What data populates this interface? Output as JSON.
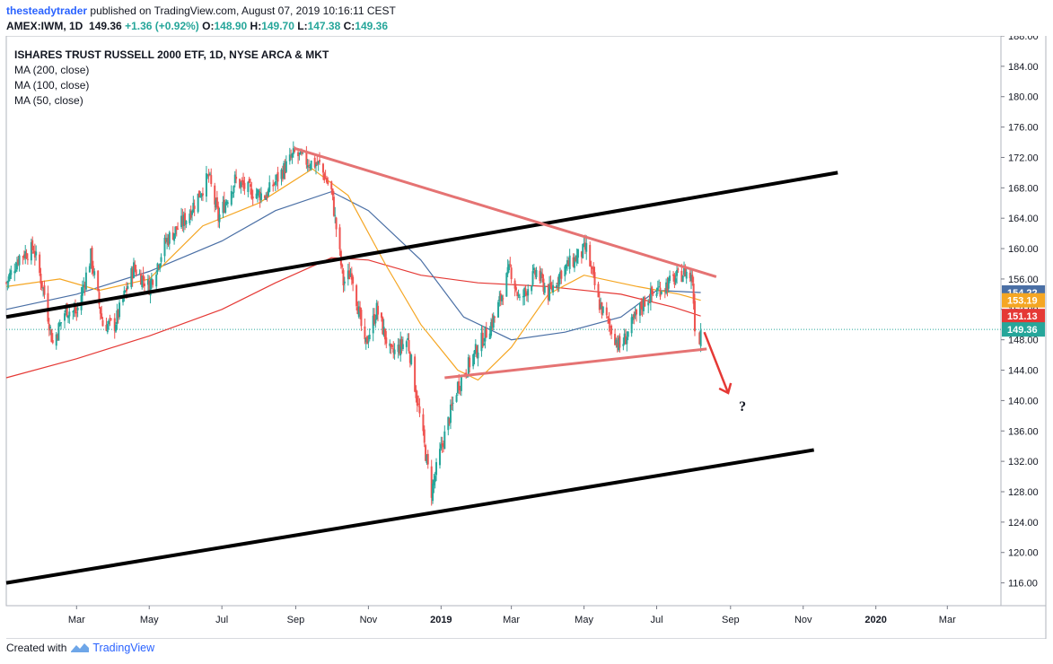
{
  "header": {
    "author": "thesteadytrader",
    "published_text": "published on TradingView.com, August 07, 2019 10:16:11 CEST",
    "symbol": "AMEX:IWM, 1D",
    "last": "149.36",
    "change": "+1.36 (+0.92%)",
    "o_label": "O:",
    "o": "148.90",
    "h_label": "H:",
    "h": "149.70",
    "l_label": "L:",
    "l": "147.38",
    "c_label": "C:",
    "c": "149.36"
  },
  "legend": {
    "title": "ISHARES TRUST RUSSELL 2000 ETF, 1D, NYSE ARCA & MKT",
    "ma1": "MA (200, close)",
    "ma2": "MA (100, close)",
    "ma3": "MA (50, close)"
  },
  "footer": {
    "created_with": "Created with",
    "brand": "TradingView"
  },
  "annotation": {
    "question_mark": "?"
  },
  "colors": {
    "up": "#26a69a",
    "down": "#ef5350",
    "ma200": "#e53935",
    "ma100": "#4a6fa5",
    "ma50": "#f5a623",
    "trend_black": "#000000",
    "trend_red": "#e57373",
    "arrow": "#e53935",
    "last_price_line": "#26a69a"
  },
  "chart_data": {
    "type": "candlestick",
    "symbol": "IWM",
    "ylim": [
      113,
      188
    ],
    "y_ticks": [
      "188.00",
      "184.00",
      "180.00",
      "176.00",
      "172.00",
      "168.00",
      "164.00",
      "160.00",
      "156.00",
      "152.00",
      "148.00",
      "144.00",
      "140.00",
      "136.00",
      "132.00",
      "128.00",
      "124.00",
      "120.00",
      "116.00"
    ],
    "x_ticks": [
      "Mar",
      "May",
      "Jul",
      "Sep",
      "Nov",
      "2019",
      "Mar",
      "May",
      "Jul",
      "Sep",
      "Nov",
      "2020",
      "Mar"
    ],
    "x_range": [
      "2018-01-01",
      "2020-04-15"
    ],
    "price_badges": [
      {
        "label": "154.22",
        "value": 154.22,
        "color": "#4a6fa5"
      },
      {
        "label": "153.19",
        "value": 153.19,
        "color": "#f5a623"
      },
      {
        "label": "151.13",
        "value": 151.13,
        "color": "#e53935"
      },
      {
        "label": "149.36",
        "value": 149.36,
        "color": "#26a69a"
      }
    ],
    "price_path": [
      [
        "2018-01-01",
        155.5
      ],
      [
        "2018-01-12",
        159
      ],
      [
        "2018-01-24",
        160
      ],
      [
        "2018-02-02",
        154
      ],
      [
        "2018-02-09",
        147.5
      ],
      [
        "2018-02-20",
        152
      ],
      [
        "2018-03-01",
        151.5
      ],
      [
        "2018-03-13",
        159
      ],
      [
        "2018-03-23",
        150
      ],
      [
        "2018-04-02",
        150
      ],
      [
        "2018-04-18",
        157.5
      ],
      [
        "2018-05-01",
        155
      ],
      [
        "2018-05-15",
        161
      ],
      [
        "2018-06-01",
        164
      ],
      [
        "2018-06-20",
        169.5
      ],
      [
        "2018-06-28",
        164
      ],
      [
        "2018-07-12",
        169
      ],
      [
        "2018-07-25",
        167.5
      ],
      [
        "2018-08-07",
        167
      ],
      [
        "2018-08-20",
        170
      ],
      [
        "2018-08-31",
        172.5
      ],
      [
        "2018-09-10",
        171.5
      ],
      [
        "2018-09-21",
        171
      ],
      [
        "2018-10-01",
        167.5
      ],
      [
        "2018-10-11",
        155.5
      ],
      [
        "2018-10-18",
        157
      ],
      [
        "2018-10-29",
        147
      ],
      [
        "2018-11-08",
        152
      ],
      [
        "2018-11-20",
        146
      ],
      [
        "2018-12-04",
        148
      ],
      [
        "2018-12-14",
        138
      ],
      [
        "2018-12-24",
        128
      ],
      [
        "2018-12-31",
        133
      ],
      [
        "2019-01-15",
        142
      ],
      [
        "2019-02-01",
        147
      ],
      [
        "2019-02-15",
        151
      ],
      [
        "2019-02-28",
        157.5
      ],
      [
        "2019-03-08",
        153
      ],
      [
        "2019-03-22",
        157
      ],
      [
        "2019-04-01",
        154
      ],
      [
        "2019-04-12",
        157
      ],
      [
        "2019-04-26",
        159
      ],
      [
        "2019-05-03",
        160
      ],
      [
        "2019-05-13",
        153
      ],
      [
        "2019-05-31",
        147
      ],
      [
        "2019-06-04",
        148
      ],
      [
        "2019-06-20",
        153
      ],
      [
        "2019-07-01",
        154.5
      ],
      [
        "2019-07-12",
        155.5
      ],
      [
        "2019-07-25",
        157
      ],
      [
        "2019-07-31",
        156
      ],
      [
        "2019-08-02",
        150
      ],
      [
        "2019-08-06",
        148
      ],
      [
        "2019-08-07",
        149.36
      ]
    ],
    "ma200": [
      [
        "2018-01-01",
        143
      ],
      [
        "2018-03-01",
        145.5
      ],
      [
        "2018-05-01",
        148.5
      ],
      [
        "2018-07-01",
        152
      ],
      [
        "2018-08-15",
        155.5
      ],
      [
        "2018-10-01",
        158.8
      ],
      [
        "2018-11-01",
        158.5
      ],
      [
        "2018-12-15",
        156.5
      ],
      [
        "2019-02-01",
        155.5
      ],
      [
        "2019-04-01",
        155
      ],
      [
        "2019-06-01",
        154
      ],
      [
        "2019-07-15",
        152.3
      ],
      [
        "2019-08-07",
        151.13
      ]
    ],
    "ma100": [
      [
        "2018-01-01",
        152
      ],
      [
        "2018-03-01",
        154
      ],
      [
        "2018-05-01",
        157
      ],
      [
        "2018-07-01",
        161
      ],
      [
        "2018-08-15",
        165
      ],
      [
        "2018-10-01",
        167.5
      ],
      [
        "2018-11-01",
        165
      ],
      [
        "2018-12-15",
        158.5
      ],
      [
        "2019-01-20",
        151
      ],
      [
        "2019-03-01",
        148
      ],
      [
        "2019-04-15",
        149
      ],
      [
        "2019-06-01",
        151
      ],
      [
        "2019-07-01",
        154.5
      ],
      [
        "2019-08-07",
        154.22
      ]
    ],
    "ma50": [
      [
        "2018-01-01",
        155
      ],
      [
        "2018-02-15",
        156
      ],
      [
        "2018-03-20",
        154.5
      ],
      [
        "2018-05-01",
        156
      ],
      [
        "2018-06-15",
        163
      ],
      [
        "2018-08-01",
        166
      ],
      [
        "2018-09-15",
        170.5
      ],
      [
        "2018-10-15",
        167
      ],
      [
        "2018-11-15",
        158
      ],
      [
        "2018-12-15",
        150
      ],
      [
        "2019-01-15",
        144
      ],
      [
        "2019-02-01",
        142.7
      ],
      [
        "2019-03-01",
        147
      ],
      [
        "2019-04-01",
        154
      ],
      [
        "2019-05-01",
        156.5
      ],
      [
        "2019-06-15",
        155
      ],
      [
        "2019-07-20",
        154
      ],
      [
        "2019-08-07",
        153.19
      ]
    ],
    "trendlines": [
      {
        "name": "upper-channel",
        "color": "#000000",
        "from": [
          "2018-01-01",
          151
        ],
        "to": [
          "2019-11-30",
          170
        ]
      },
      {
        "name": "lower-channel",
        "color": "#000000",
        "from": [
          "2018-01-01",
          116
        ],
        "to": [
          "2019-11-10",
          133.5
        ]
      },
      {
        "name": "descending-resistance",
        "color": "#e57373",
        "from": [
          "2018-08-31",
          173.2
        ],
        "to": [
          "2019-08-20",
          156.3
        ]
      },
      {
        "name": "ascending-support",
        "color": "#e57373",
        "from": [
          "2019-01-04",
          143
        ],
        "to": [
          "2019-08-12",
          146.8
        ]
      }
    ],
    "arrow": {
      "from": [
        "2019-08-10",
        149
      ],
      "to": [
        "2019-08-30",
        141
      ]
    }
  }
}
